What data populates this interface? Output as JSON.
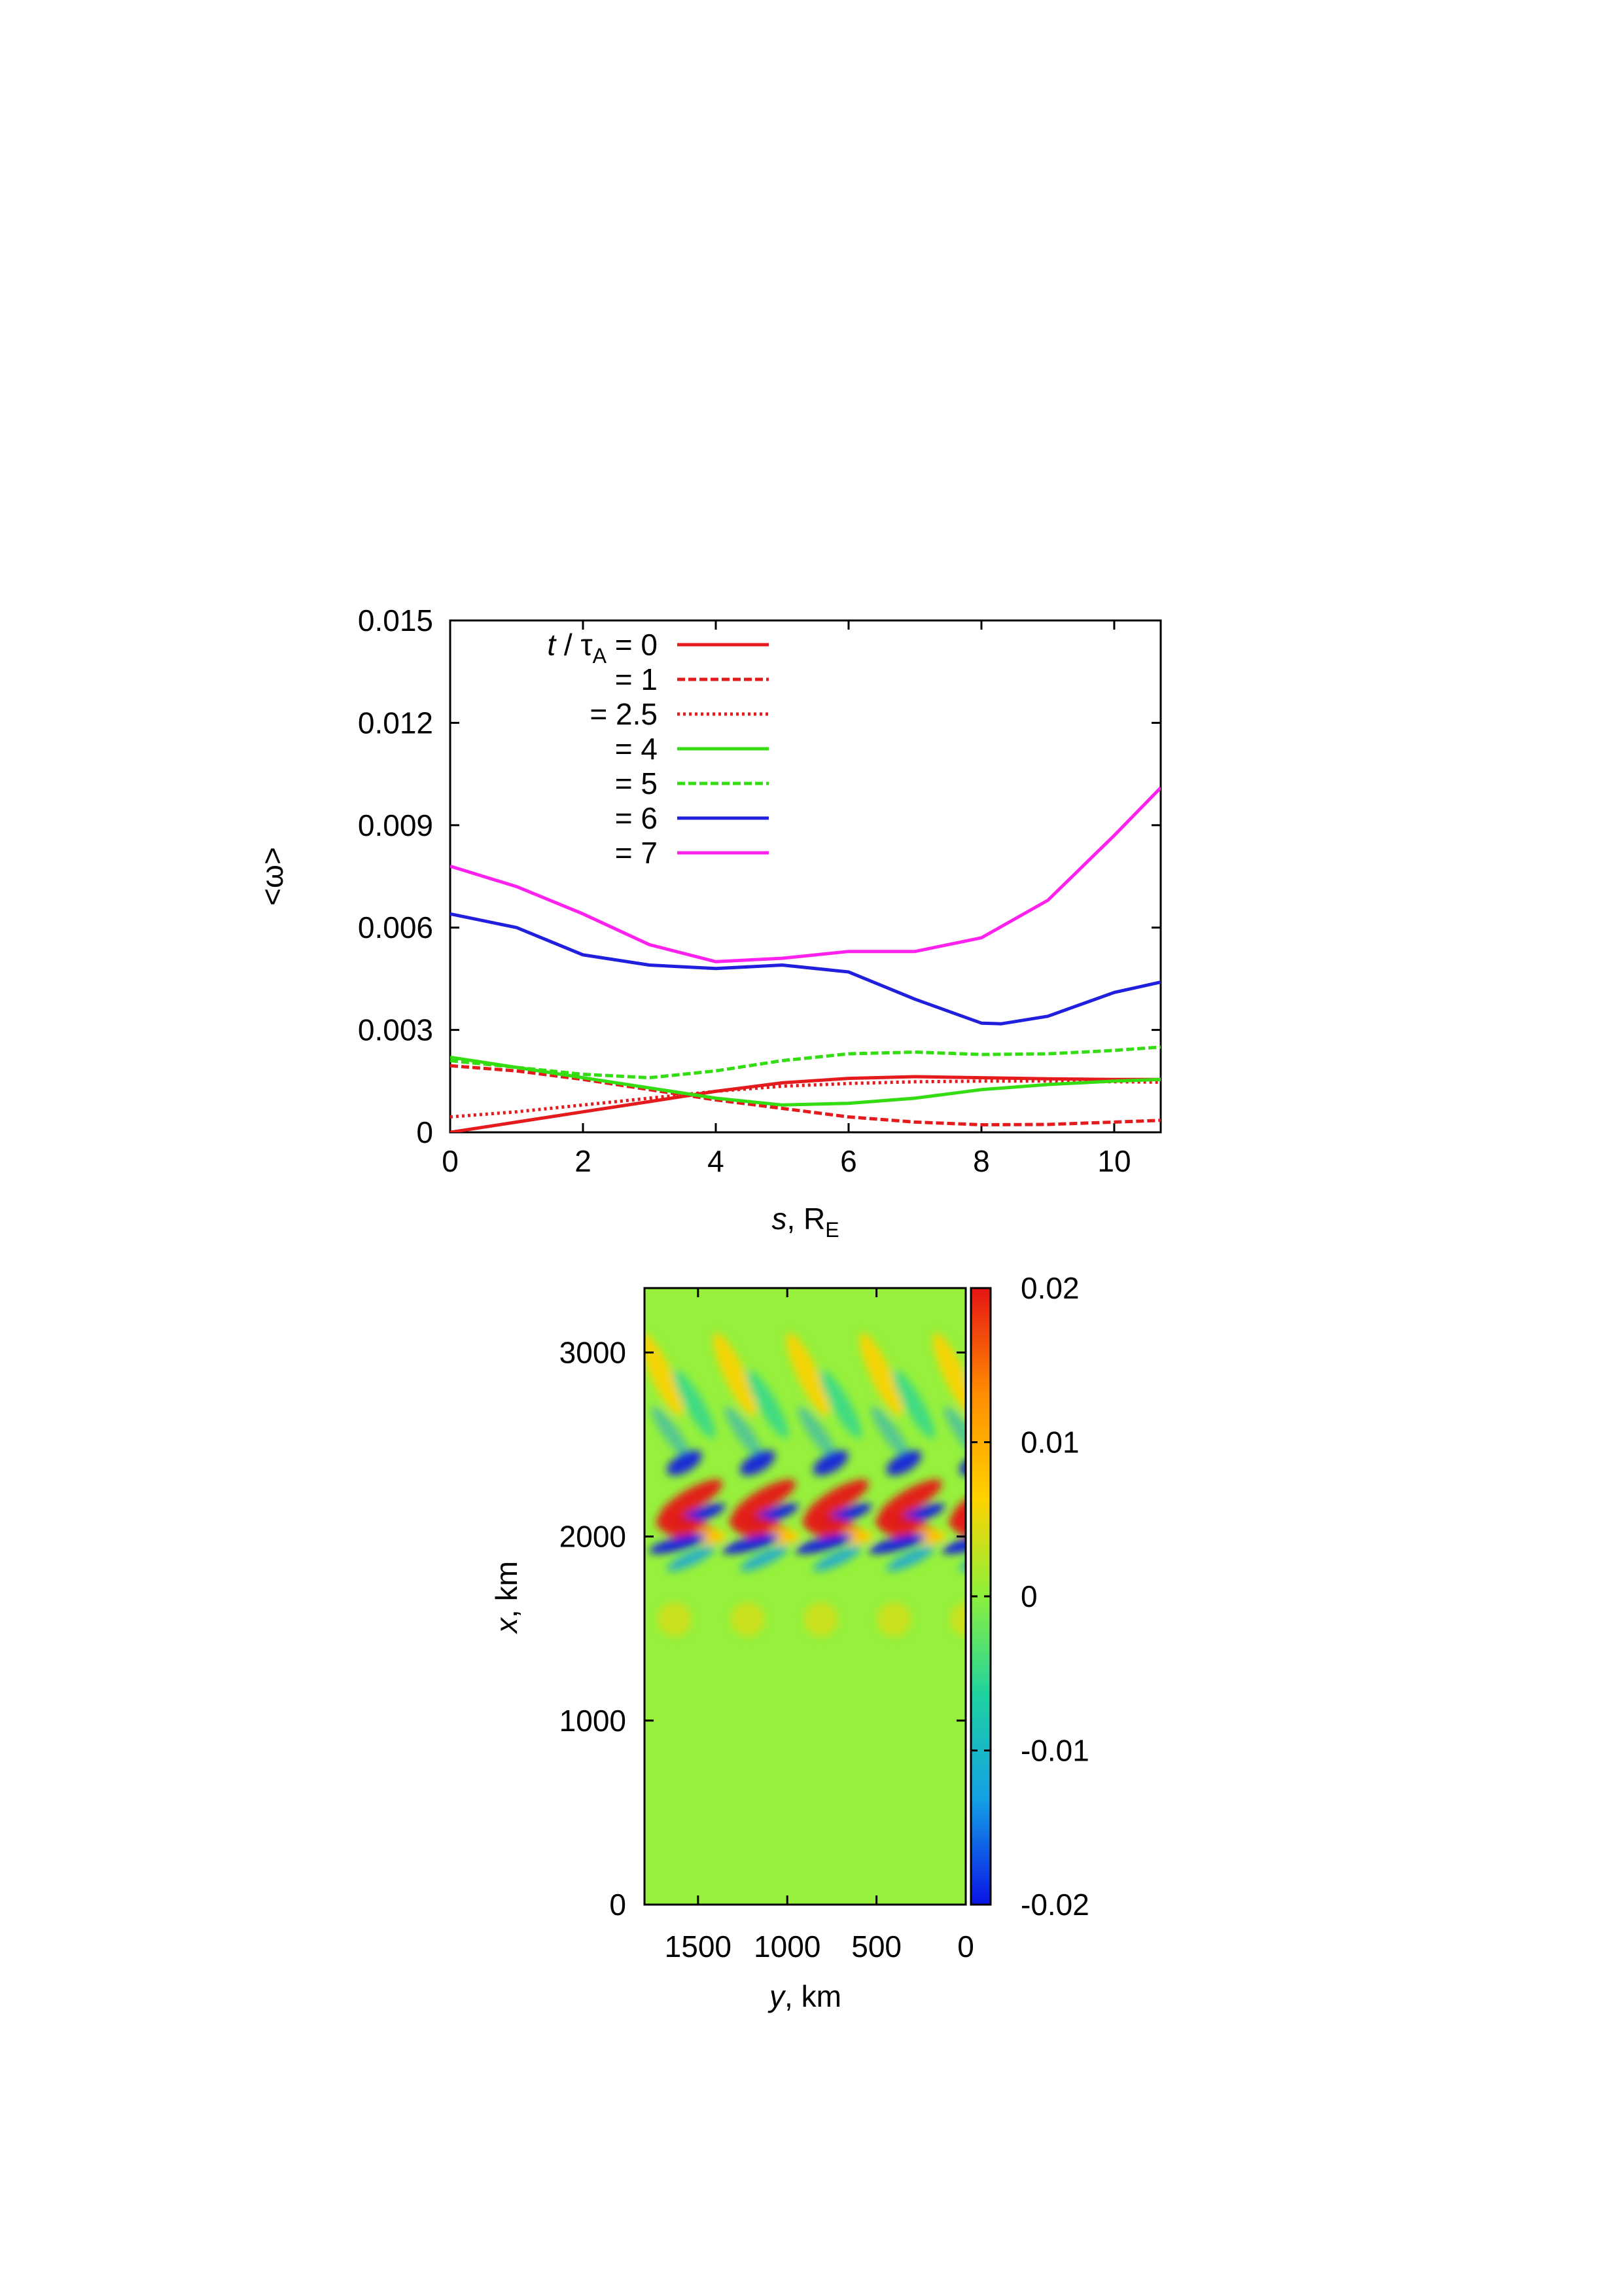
{
  "chart_data": [
    {
      "type": "line",
      "xlabel": {
        "var": "s",
        "rest": ", R",
        "sub": "E"
      },
      "ylabel": "<ω>",
      "xlim": [
        0,
        10.7
      ],
      "ylim": [
        0,
        0.015
      ],
      "xticks": [
        0,
        2,
        4,
        6,
        8,
        10
      ],
      "xtick_labels": [
        "0",
        "2",
        "4",
        "6",
        "8",
        "10"
      ],
      "yticks": [
        0,
        0.003,
        0.006,
        0.009,
        0.012,
        0.015
      ],
      "ytick_labels": [
        "0",
        "0.003",
        "0.006",
        "0.009",
        "0.012",
        "0.015"
      ],
      "legend_position": "top-left",
      "legend_title": {
        "var": "t",
        "sep": " / τ",
        "sub": "A"
      },
      "series": [
        {
          "name": "= 0",
          "color": "#e41a1c",
          "dash": "solid",
          "x": [
            0,
            1,
            2,
            3,
            4,
            5,
            6,
            7,
            8,
            9,
            10,
            10.7
          ],
          "y": [
            0.0,
            0.0003,
            0.0006,
            0.0009,
            0.0012,
            0.00145,
            0.00158,
            0.00163,
            0.0016,
            0.00157,
            0.00155,
            0.00155
          ]
        },
        {
          "name": "= 1",
          "color": "#e41a1c",
          "dash": "dashed",
          "x": [
            0,
            1,
            2,
            3,
            4,
            5,
            6,
            7,
            8,
            9,
            10,
            10.7
          ],
          "y": [
            0.00195,
            0.0018,
            0.00155,
            0.00125,
            0.00095,
            0.0007,
            0.00045,
            0.0003,
            0.00022,
            0.00023,
            0.0003,
            0.00035
          ]
        },
        {
          "name": "= 2.5",
          "color": "#e41a1c",
          "dash": "dotted",
          "x": [
            0,
            1,
            2,
            3,
            4,
            5,
            6,
            7,
            8,
            9,
            10,
            10.7
          ],
          "y": [
            0.00045,
            0.0006,
            0.0008,
            0.001,
            0.0012,
            0.00135,
            0.00143,
            0.00148,
            0.0015,
            0.0015,
            0.00148,
            0.00147
          ]
        },
        {
          "name": "= 4",
          "color": "#33dd11",
          "dash": "solid",
          "x": [
            0,
            1,
            2,
            3,
            4,
            5,
            6,
            7,
            8,
            9,
            10,
            10.7
          ],
          "y": [
            0.0022,
            0.0019,
            0.0016,
            0.0013,
            0.001,
            0.0008,
            0.00085,
            0.001,
            0.00125,
            0.0014,
            0.0015,
            0.00155
          ]
        },
        {
          "name": "= 5",
          "color": "#33dd11",
          "dash": "dashed",
          "x": [
            0,
            1,
            2,
            3,
            4,
            5,
            6,
            7,
            8,
            9,
            10,
            10.7
          ],
          "y": [
            0.0021,
            0.0019,
            0.0017,
            0.0016,
            0.0018,
            0.0021,
            0.0023,
            0.00235,
            0.00228,
            0.0023,
            0.0024,
            0.0025
          ]
        },
        {
          "name": "= 6",
          "color": "#1f1fdd",
          "dash": "solid",
          "x": [
            0,
            1,
            2,
            3,
            4,
            5,
            6,
            7,
            8,
            8.3,
            9,
            10,
            10.7
          ],
          "y": [
            0.0064,
            0.006,
            0.0052,
            0.0049,
            0.0048,
            0.0049,
            0.0047,
            0.0039,
            0.0032,
            0.00318,
            0.0034,
            0.0041,
            0.0044
          ]
        },
        {
          "name": "= 7",
          "color": "#ff22ee",
          "dash": "solid",
          "x": [
            0,
            1,
            2,
            3,
            4,
            5,
            6,
            7,
            8,
            9,
            10,
            10.7
          ],
          "y": [
            0.0078,
            0.0072,
            0.0064,
            0.0055,
            0.005,
            0.0051,
            0.0053,
            0.0053,
            0.0057,
            0.0068,
            0.0087,
            0.0101
          ]
        }
      ]
    },
    {
      "type": "heatmap",
      "xlabel": {
        "var": "y",
        "rest": ", km"
      },
      "ylabel": {
        "var": "x",
        "rest": ", km"
      },
      "xlim": [
        1800,
        0
      ],
      "ylim": [
        0,
        3350
      ],
      "xticks": [
        1500,
        1000,
        500,
        0
      ],
      "xtick_labels": [
        "1500",
        "1000",
        "500",
        "0"
      ],
      "yticks": [
        0,
        1000,
        2000,
        3000
      ],
      "ytick_labels": [
        "0",
        "1000",
        "2000",
        "3000"
      ],
      "colorbar": {
        "range": [
          -0.02,
          0.02
        ],
        "ticks": [
          0.02,
          0.01,
          0,
          -0.01,
          -0.02
        ],
        "tick_labels": [
          "0.02",
          "0.01",
          "0",
          "-0.01",
          "-0.02"
        ],
        "colormap": [
          "#0a14e6",
          "#14a0e6",
          "#1ed2a0",
          "#8cf03c",
          "#ffd200",
          "#ff8c00",
          "#e61414"
        ]
      }
    }
  ]
}
